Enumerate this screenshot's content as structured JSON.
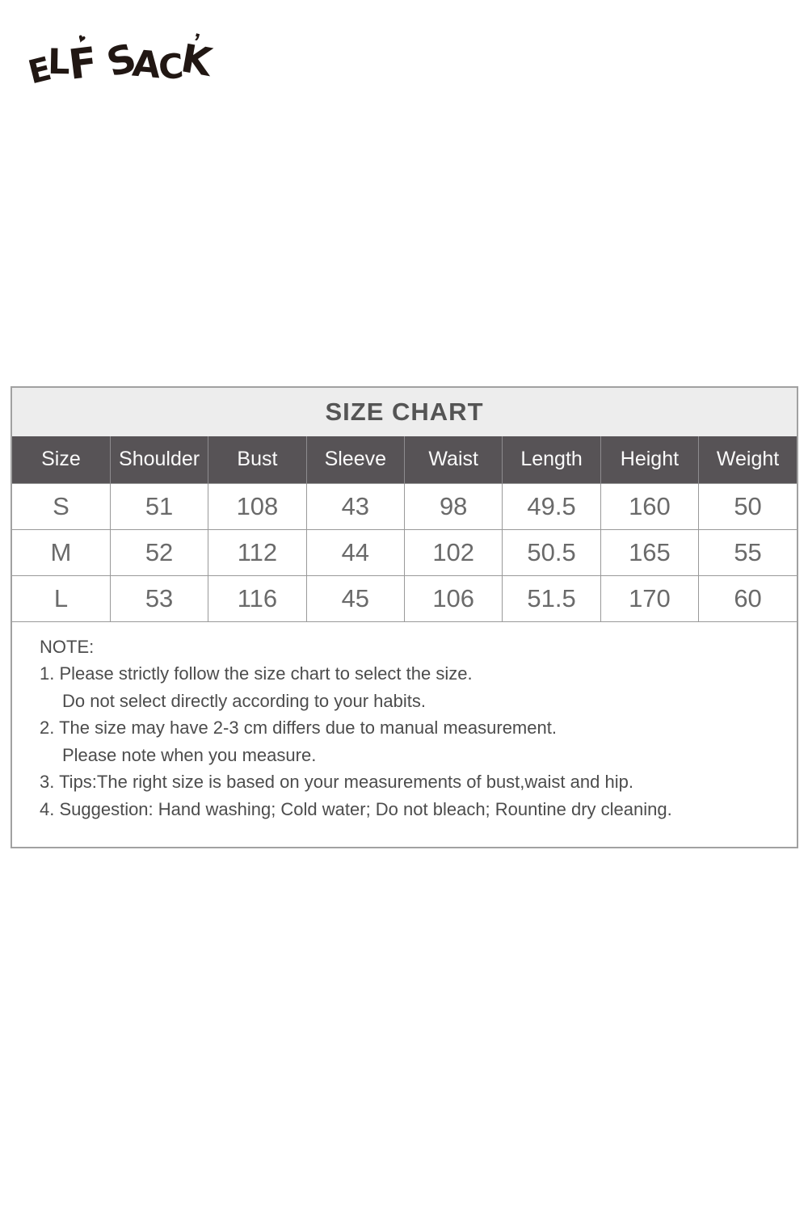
{
  "logo": {
    "name": "ELF SACK",
    "letters": [
      "E",
      "L",
      "F",
      "S",
      "A",
      "C",
      "K"
    ],
    "heart_mark": "♥",
    "tick_mark": "’",
    "color": "#211713"
  },
  "size_chart": {
    "title": "SIZE CHART",
    "columns": [
      "Size",
      "Shoulder",
      "Bust",
      "Sleeve",
      "Waist",
      "Length",
      "Height",
      "Weight"
    ],
    "rows": [
      [
        "S",
        "51",
        "108",
        "43",
        "98",
        "49.5",
        "160",
        "50"
      ],
      [
        "M",
        "52",
        "112",
        "44",
        "102",
        "50.5",
        "165",
        "55"
      ],
      [
        "L",
        "53",
        "116",
        "45",
        "106",
        "51.5",
        "170",
        "60"
      ]
    ],
    "colors": {
      "title_band_bg": "#ededed",
      "title_text": "#555555",
      "header_bg": "#575356",
      "header_text": "#fafafa",
      "cell_text": "#6a6a6a",
      "grid_line": "#999999",
      "outer_border": "#a1a1a1",
      "note_text": "#4c4c4c"
    }
  },
  "notes": {
    "heading": "NOTE:",
    "lines": [
      {
        "text": "1. Please strictly follow the size chart to select the size.",
        "indent": false
      },
      {
        "text": "Do not select directly according to your habits.",
        "indent": true
      },
      {
        "text": "2. The size may have 2-3 cm differs due to manual measurement.",
        "indent": false
      },
      {
        "text": "Please note when you measure.",
        "indent": true
      },
      {
        "text": "3. Tips:The right size is based on your measurements of bust,waist and hip.",
        "indent": false
      },
      {
        "text": "4. Suggestion: Hand washing; Cold water; Do not bleach; Rountine dry cleaning.",
        "indent": false
      }
    ]
  }
}
